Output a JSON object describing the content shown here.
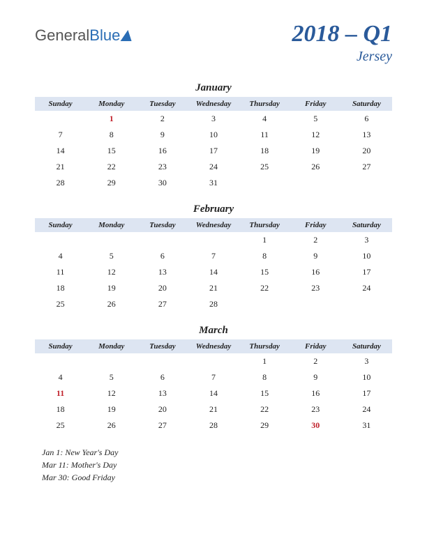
{
  "logo": {
    "part1": "General",
    "part2": "Blue"
  },
  "title": {
    "quarter": "2018 – Q1",
    "region": "Jersey"
  },
  "day_headers": [
    "Sunday",
    "Monday",
    "Tuesday",
    "Wednesday",
    "Thursday",
    "Friday",
    "Saturday"
  ],
  "colors": {
    "header_bg": "#dde5f2",
    "title_color": "#2a5a9a",
    "holiday_color": "#c0202a",
    "text_color": "#222222",
    "background": "#ffffff"
  },
  "typography": {
    "quarter_fontsize": 34,
    "region_fontsize": 20,
    "month_fontsize": 15,
    "header_fontsize": 11,
    "cell_fontsize": 12,
    "holiday_list_fontsize": 12
  },
  "months": [
    {
      "name": "January",
      "weeks": [
        [
          "",
          "1",
          "2",
          "3",
          "4",
          "5",
          "6"
        ],
        [
          "7",
          "8",
          "9",
          "10",
          "11",
          "12",
          "13"
        ],
        [
          "14",
          "15",
          "16",
          "17",
          "18",
          "19",
          "20"
        ],
        [
          "21",
          "22",
          "23",
          "24",
          "25",
          "26",
          "27"
        ],
        [
          "28",
          "29",
          "30",
          "31",
          "",
          "",
          ""
        ]
      ],
      "holidays": [
        [
          0,
          1
        ]
      ]
    },
    {
      "name": "February",
      "weeks": [
        [
          "",
          "",
          "",
          "",
          "1",
          "2",
          "3"
        ],
        [
          "4",
          "5",
          "6",
          "7",
          "8",
          "9",
          "10"
        ],
        [
          "11",
          "12",
          "13",
          "14",
          "15",
          "16",
          "17"
        ],
        [
          "18",
          "19",
          "20",
          "21",
          "22",
          "23",
          "24"
        ],
        [
          "25",
          "26",
          "27",
          "28",
          "",
          "",
          ""
        ]
      ],
      "holidays": []
    },
    {
      "name": "March",
      "weeks": [
        [
          "",
          "",
          "",
          "",
          "1",
          "2",
          "3"
        ],
        [
          "4",
          "5",
          "6",
          "7",
          "8",
          "9",
          "10"
        ],
        [
          "11",
          "12",
          "13",
          "14",
          "15",
          "16",
          "17"
        ],
        [
          "18",
          "19",
          "20",
          "21",
          "22",
          "23",
          "24"
        ],
        [
          "25",
          "26",
          "27",
          "28",
          "29",
          "30",
          "31"
        ]
      ],
      "holidays": [
        [
          2,
          0
        ],
        [
          4,
          5
        ]
      ]
    }
  ],
  "holiday_list": [
    "Jan 1: New Year's Day",
    "Mar 11: Mother's Day",
    "Mar 30: Good Friday"
  ]
}
